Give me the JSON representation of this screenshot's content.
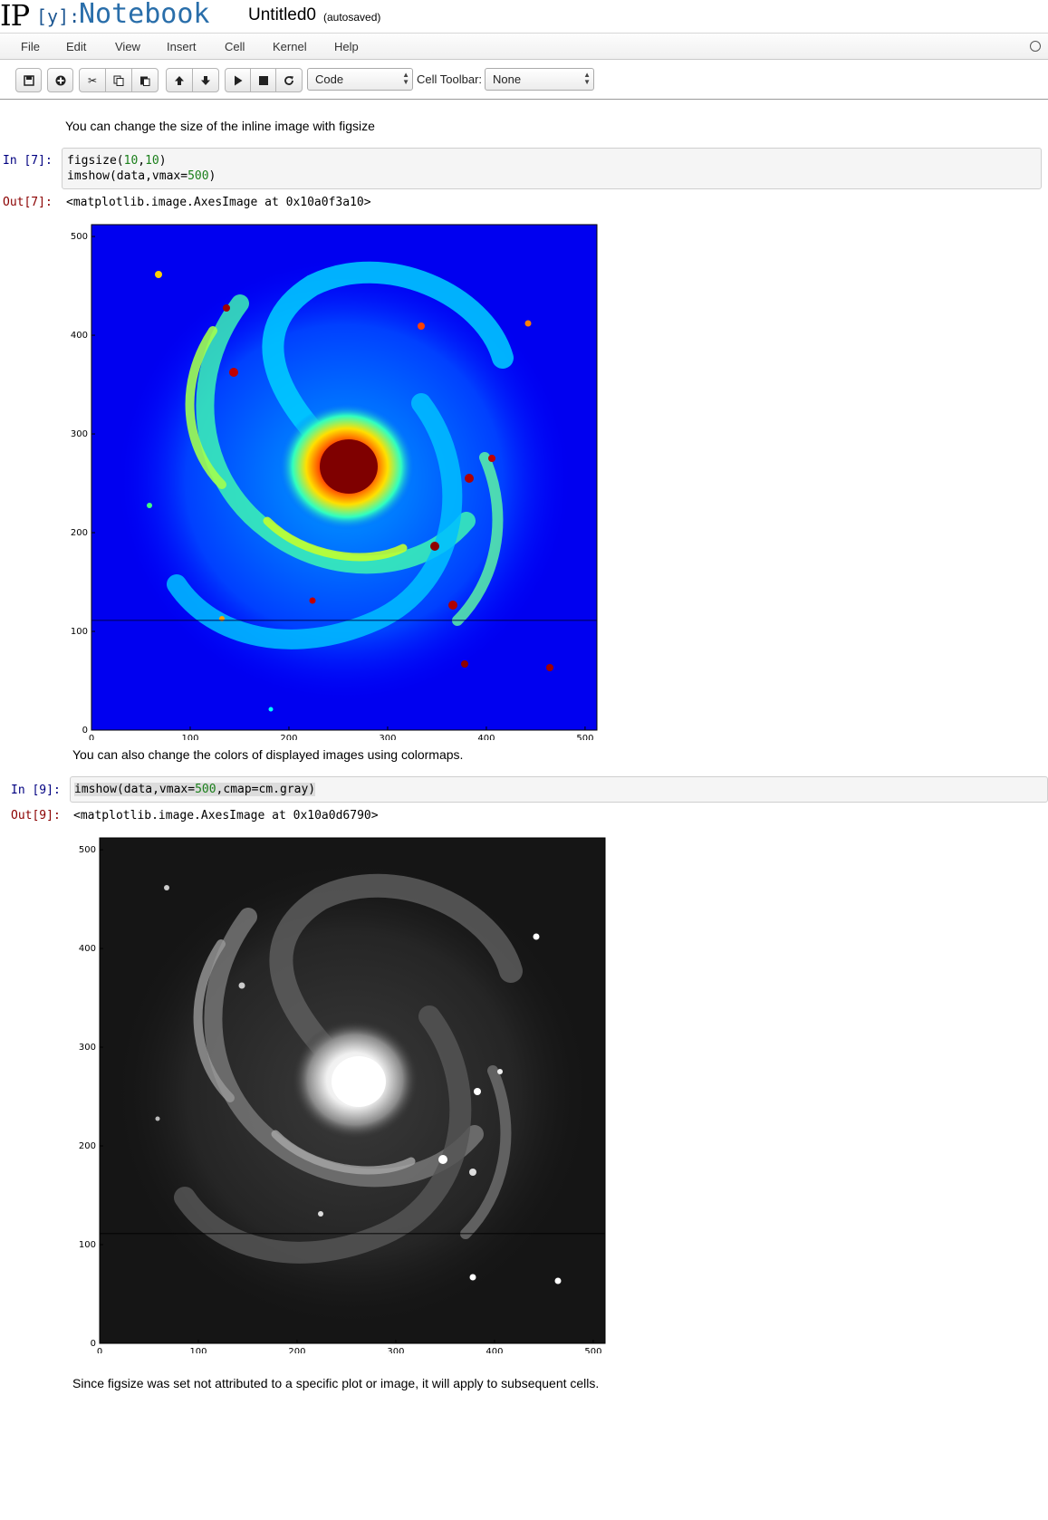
{
  "header": {
    "logo_ip": "IP",
    "logo_y": "[y]:",
    "logo_notebook": "Notebook",
    "notebook_name": "Untitled0",
    "save_status": "(autosaved)"
  },
  "menubar": {
    "items": [
      "File",
      "Edit",
      "View",
      "Insert",
      "Cell",
      "Kernel",
      "Help"
    ]
  },
  "toolbar": {
    "icons": [
      "save-icon",
      "plus-circle-icon",
      "scissors-icon",
      "copy-icon",
      "paste-icon",
      "arrow-up-icon",
      "arrow-down-icon",
      "play-icon",
      "stop-icon",
      "restart-icon"
    ],
    "cell_type": "Code",
    "cell_toolbar_label": "Cell Toolbar:",
    "cell_toolbar_value": "None"
  },
  "cells": {
    "md1": "You can change the size of the inline image with figsize",
    "in7_prompt": "In [7]:",
    "in7_line1": {
      "a": "figsize(",
      "n1": "10",
      "c": ",",
      "n2": "10",
      "d": ")"
    },
    "in7_line2": {
      "a": "imshow(data,vmax=",
      "n": "500",
      "b": ")"
    },
    "out7_prompt": "Out[7]:",
    "out7_text": "<matplotlib.image.AxesImage at 0x10a0f3a10>",
    "md2": "You can also change the colors of displayed images using colormaps.",
    "in9_prompt": "In [9]:",
    "in9_line": {
      "a": "imshow(data,vmax=",
      "n": "500",
      "b": ",cmap=cm.gray)"
    },
    "out9_prompt": "Out[9]:",
    "out9_text": "<matplotlib.image.AxesImage at 0x10a0d6790>",
    "md3": "Since figsize was set not attributed to a specific plot or image, it will apply to subsequent cells."
  },
  "chart_data": [
    {
      "type": "heatmap",
      "colormap": "jet",
      "vmax": 500,
      "xlim": [
        0,
        512
      ],
      "ylim": [
        0,
        512
      ],
      "xticks": [
        0,
        100,
        200,
        300,
        400,
        500
      ],
      "yticks": [
        0,
        100,
        200,
        300,
        400,
        500
      ],
      "title": "",
      "xlabel": "",
      "ylabel": ""
    },
    {
      "type": "heatmap",
      "colormap": "gray",
      "vmax": 500,
      "xlim": [
        0,
        512
      ],
      "ylim": [
        0,
        512
      ],
      "xticks": [
        0,
        100,
        200,
        300,
        400,
        500
      ],
      "yticks": [
        0,
        100,
        200,
        300,
        400,
        500
      ],
      "title": "",
      "xlabel": "",
      "ylabel": ""
    }
  ]
}
